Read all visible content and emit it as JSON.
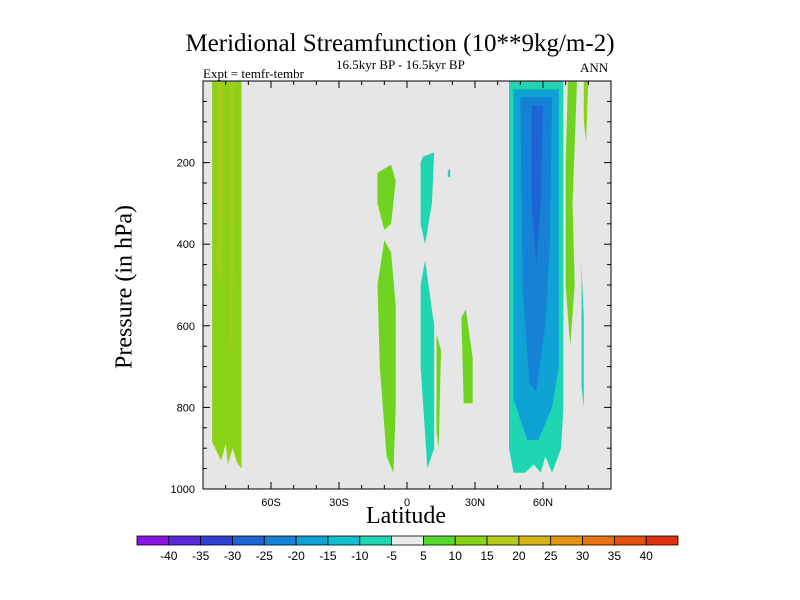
{
  "chart_data": {
    "type": "contour",
    "title": "Meridional Streamfunction (10**9kg/m-2)",
    "left_string": "Expt = temfr-tembr",
    "center_string": "16.5kyr BP - 16.5kyr BP",
    "right_string": "ANN",
    "xlabel": "Latitude",
    "ylabel": "Pressure (in hPa)",
    "xlim": [
      -90,
      90
    ],
    "ylim": [
      1000,
      0
    ],
    "x_ticks": [
      {
        "value": -60,
        "label": "60S"
      },
      {
        "value": -30,
        "label": "30S"
      },
      {
        "value": 0,
        "label": "0"
      },
      {
        "value": 30,
        "label": "30N"
      },
      {
        "value": 60,
        "label": "60N"
      }
    ],
    "y_ticks": [
      {
        "value": 200,
        "label": "200"
      },
      {
        "value": 400,
        "label": "400"
      },
      {
        "value": 600,
        "label": "600"
      },
      {
        "value": 800,
        "label": "800"
      },
      {
        "value": 1000,
        "label": "1000"
      }
    ],
    "background_color": "#e6e6e6",
    "colorbar": {
      "levels": [
        -40,
        -35,
        -30,
        -25,
        -20,
        -15,
        -10,
        -5,
        5,
        10,
        15,
        20,
        25,
        30,
        35,
        40
      ],
      "colors": [
        "#8b14e8",
        "#5a28dd",
        "#2f3fd6",
        "#1d64d4",
        "#1582d6",
        "#0fa2d5",
        "#10c0cd",
        "#20d6b2",
        "#ebebeb",
        "#52d82a",
        "#8ad317",
        "#b3cb19",
        "#d4b414",
        "#e39612",
        "#ea730f",
        "#e8500e",
        "#e22f0c"
      ]
    },
    "regions": [
      {
        "name": "sh-positive-cell",
        "level": "5 to 10",
        "color": "#8ad317",
        "points": [
          [
            -86,
            0
          ],
          [
            -73,
            0
          ],
          [
            -73,
            950
          ],
          [
            -75,
            935
          ],
          [
            -77,
            900
          ],
          [
            -79,
            940
          ],
          [
            -80,
            890
          ],
          [
            -82,
            930
          ],
          [
            -86,
            885
          ]
        ]
      },
      {
        "name": "sh-positive-core",
        "level": "10 to 15",
        "color": "#a4cd18",
        "points": [
          [
            -84,
            0
          ],
          [
            -81,
            0
          ],
          [
            -81,
            250
          ],
          [
            -82,
            500
          ],
          [
            -84,
            450
          ],
          [
            -84,
            0
          ]
        ]
      },
      {
        "name": "sh-positive-core-2",
        "level": "10 to 15",
        "color": "#a4cd18",
        "points": [
          [
            -78,
            0
          ],
          [
            -76,
            0
          ],
          [
            -76,
            300
          ],
          [
            -77,
            600
          ],
          [
            -78,
            700
          ],
          [
            -78,
            0
          ]
        ]
      },
      {
        "name": "tropical-positive-upper",
        "level": "5 to 10",
        "color": "#6ed41f",
        "points": [
          [
            -13,
            225
          ],
          [
            -7,
            205
          ],
          [
            -5,
            245
          ],
          [
            -7,
            350
          ],
          [
            -10,
            365
          ],
          [
            -13,
            300
          ]
        ]
      },
      {
        "name": "tropical-positive-lower",
        "level": "5 to 10",
        "color": "#6ed41f",
        "points": [
          [
            -10,
            390
          ],
          [
            -7,
            420
          ],
          [
            -5,
            550
          ],
          [
            -5,
            800
          ],
          [
            -6,
            960
          ],
          [
            -9,
            920
          ],
          [
            -12,
            700
          ],
          [
            -13,
            500
          ]
        ]
      },
      {
        "name": "tropical-negative-upper",
        "level": "-10 to -5",
        "color": "#20d6b2",
        "points": [
          [
            7,
            185
          ],
          [
            12,
            175
          ],
          [
            11,
            300
          ],
          [
            8,
            400
          ],
          [
            6,
            350
          ],
          [
            6,
            200
          ]
        ]
      },
      {
        "name": "tropical-negative-lower",
        "level": "-10 to -5",
        "color": "#20d6b2",
        "points": [
          [
            8,
            440
          ],
          [
            12,
            600
          ],
          [
            12,
            900
          ],
          [
            9,
            950
          ],
          [
            6,
            700
          ],
          [
            6,
            500
          ]
        ]
      },
      {
        "name": "small-positive-a",
        "level": "5 to 10",
        "color": "#6ed41f",
        "points": [
          [
            13,
            620
          ],
          [
            15,
            660
          ],
          [
            14,
            900
          ],
          [
            13,
            860
          ]
        ]
      },
      {
        "name": "small-positive-b",
        "level": "5 to 10",
        "color": "#6ed41f",
        "points": [
          [
            24,
            580
          ],
          [
            26,
            560
          ],
          [
            29,
            680
          ],
          [
            29,
            790
          ],
          [
            25,
            790
          ]
        ]
      },
      {
        "name": "nh-negative-outer",
        "level": "-10 to -5",
        "color": "#20d6b2",
        "points": [
          [
            45,
            0
          ],
          [
            69,
            0
          ],
          [
            69,
            800
          ],
          [
            68,
            900
          ],
          [
            64,
            960
          ],
          [
            61,
            920
          ],
          [
            59,
            960
          ],
          [
            56,
            940
          ],
          [
            52,
            960
          ],
          [
            47,
            960
          ],
          [
            45,
            900
          ]
        ]
      },
      {
        "name": "nh-negative-mid",
        "level": "-15 to -10",
        "color": "#0fa2d5",
        "points": [
          [
            47,
            20
          ],
          [
            67,
            20
          ],
          [
            67,
            700
          ],
          [
            64,
            800
          ],
          [
            58,
            880
          ],
          [
            53,
            880
          ],
          [
            47,
            780
          ]
        ]
      },
      {
        "name": "nh-negative-inner",
        "level": "-20 to -15",
        "color": "#1582d6",
        "points": [
          [
            50,
            40
          ],
          [
            64,
            40
          ],
          [
            63,
            400
          ],
          [
            61,
            600
          ],
          [
            57,
            760
          ],
          [
            54,
            740
          ],
          [
            51,
            500
          ]
        ]
      },
      {
        "name": "nh-negative-core",
        "level": "-25 to -20",
        "color": "#1d64d4",
        "points": [
          [
            55,
            60
          ],
          [
            60,
            60
          ],
          [
            59,
            300
          ],
          [
            57,
            450
          ],
          [
            55,
            300
          ]
        ]
      },
      {
        "name": "nh-positive-sliver",
        "level": "5 to 10",
        "color": "#6ed41f",
        "points": [
          [
            71,
            0
          ],
          [
            75,
            0
          ],
          [
            73,
            300
          ],
          [
            74,
            500
          ],
          [
            72,
            650
          ],
          [
            70,
            500
          ],
          [
            70,
            200
          ]
        ]
      },
      {
        "name": "far-nh-positive",
        "level": "5 to 10",
        "color": "#8ad317",
        "points": [
          [
            78,
            0
          ],
          [
            80,
            0
          ],
          [
            79,
            150
          ],
          [
            78,
            100
          ]
        ]
      },
      {
        "name": "far-nh-negative",
        "level": "-10 to -5",
        "color": "#20d6b2",
        "points": [
          [
            77,
            450
          ],
          [
            78,
            580
          ],
          [
            78,
            800
          ],
          [
            77,
            750
          ]
        ]
      },
      {
        "name": "tiny-negative-speck",
        "level": "-10 to -5",
        "color": "#20d6b2",
        "points": [
          [
            18,
            220
          ],
          [
            19,
            215
          ],
          [
            19,
            235
          ],
          [
            18,
            235
          ]
        ]
      }
    ]
  }
}
